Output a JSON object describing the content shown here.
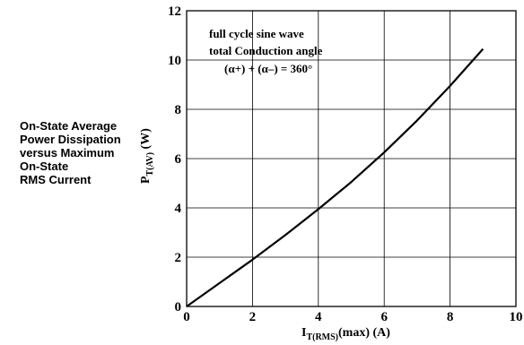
{
  "caption_lines": [
    "On-State Average",
    "Power Dissipation",
    "versus Maximum",
    "On-State",
    "RMS Current"
  ],
  "chart_data": {
    "type": "line",
    "x_axis": {
      "label_main": "I",
      "label_sub": "T(RMS)",
      "label_rest": "(max) (A)",
      "ticks": [
        0,
        2,
        4,
        6,
        8,
        10
      ],
      "range": [
        0,
        10
      ]
    },
    "y_axis": {
      "label_main": "P",
      "label_sub": "T(AV)",
      "label_rest": " (W)",
      "ticks": [
        0,
        2,
        4,
        6,
        8,
        10,
        12
      ],
      "range": [
        0,
        12
      ]
    },
    "grid": true,
    "annotation_lines": [
      "full cycle sine wave",
      "total Conduction angle",
      "(α+) + (α–) = 360°"
    ],
    "series": [
      {
        "x": [
          0,
          1,
          2,
          3,
          4,
          5,
          6,
          7,
          8,
          9
        ],
        "y": [
          0,
          0.95,
          1.9,
          2.9,
          3.95,
          5.05,
          6.25,
          7.55,
          8.95,
          10.45
        ]
      }
    ]
  }
}
